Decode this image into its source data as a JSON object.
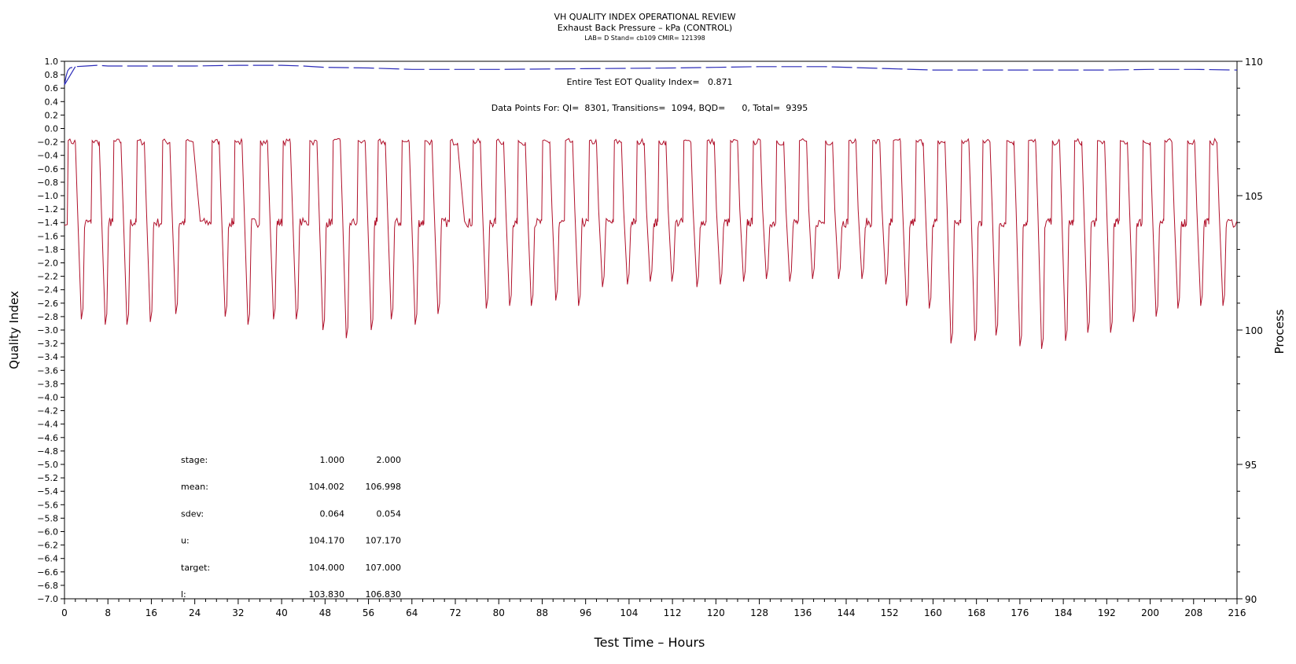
{
  "chart_data": {
    "type": "line",
    "title": "VH QUALITY INDEX OPERATIONAL REVIEW",
    "subtitle": "Exhaust Back Pressure – kPa (CONTROL)",
    "subtitle2": "LAB= D Stand= cb109 CMIR= 121398",
    "xlabel": "Test Time – Hours",
    "ylabel_left": "Quality Index",
    "ylabel_right": "Process",
    "xlim": [
      0,
      216
    ],
    "ylim_left": [
      -7.0,
      1.0
    ],
    "ylim_right": [
      90,
      110
    ],
    "x_ticks": [
      "0",
      "8",
      "16",
      "24",
      "32",
      "40",
      "48",
      "56",
      "64",
      "72",
      "80",
      "88",
      "96",
      "104",
      "112",
      "120",
      "128",
      "136",
      "144",
      "152",
      "160",
      "168",
      "176",
      "184",
      "192",
      "200",
      "208",
      "216"
    ],
    "y_left_ticks": [
      "1.0",
      "0.8",
      "0.6",
      "0.4",
      "0.2",
      "0.0",
      "-0.2",
      "-0.4",
      "-0.6",
      "-0.8",
      "-1.0",
      "-1.2",
      "-1.4",
      "-1.6",
      "-1.8",
      "-2.0",
      "-2.2",
      "-2.4",
      "-2.6",
      "-2.8",
      "-3.0",
      "-3.2",
      "-3.4",
      "-3.6",
      "-3.8",
      "-4.0",
      "-4.2",
      "-4.4",
      "-4.6",
      "-4.8",
      "-5.0",
      "-5.2",
      "-5.4",
      "-5.6",
      "-5.8",
      "-6.0",
      "-6.2",
      "-6.4",
      "-6.6",
      "-6.8",
      "-7.0"
    ],
    "y_right_ticks": [
      "90",
      "95",
      "100",
      "105",
      "110"
    ],
    "annotations": {
      "eot": "Entire Test EOT Quality Index=   0.871",
      "datapoints": "Data Points For: QI=  8301, Transitions=  1094, BQD=      0, Total=  9395"
    },
    "stats_table": {
      "rows": [
        {
          "label": "stage:",
          "v1": "1.000",
          "v2": "2.000"
        },
        {
          "label": "mean:",
          "v1": "104.002",
          "v2": "106.998"
        },
        {
          "label": "sdev:",
          "v1": "0.064",
          "v2": "0.054"
        },
        {
          "label": "u:",
          "v1": "104.170",
          "v2": "107.170"
        },
        {
          "label": "target:",
          "v1": "104.000",
          "v2": "107.000"
        },
        {
          "label": "l:",
          "v1": "103.830",
          "v2": "106.830"
        }
      ]
    },
    "series": [
      {
        "axis": "left",
        "color": "#2b2bb8",
        "style": "dashed",
        "x": [
          0.0,
          0.3,
          0.6,
          1.0,
          2.0,
          4.0,
          6.0,
          8.0,
          12.0,
          16.0,
          24.0,
          32.0,
          40.0,
          44.0,
          48.0,
          56.0,
          64.0,
          80.0,
          96.0,
          112.0,
          120.0,
          128.0,
          140.0,
          152.0,
          160.0,
          176.0,
          192.0,
          200.0,
          208.0,
          216.0
        ],
        "y": [
          0.65,
          0.78,
          0.86,
          0.9,
          0.92,
          0.93,
          0.94,
          0.93,
          0.93,
          0.93,
          0.93,
          0.94,
          0.94,
          0.93,
          0.91,
          0.9,
          0.88,
          0.88,
          0.89,
          0.9,
          0.91,
          0.92,
          0.92,
          0.89,
          0.87,
          0.87,
          0.87,
          0.88,
          0.88,
          0.87
        ]
      },
      {
        "axis": "right",
        "color": "#b0102a",
        "style": "solid",
        "cycle_start_hours": [
          0.5,
          4.9,
          8.9,
          13.2,
          17.9,
          22.2,
          27.0,
          31.2,
          35.9,
          40.1,
          45.0,
          49.3,
          53.9,
          57.6,
          62.0,
          66.2,
          70.9,
          75.1,
          79.4,
          83.4,
          87.9,
          92.1,
          96.5,
          101.1,
          105.3,
          109.3,
          113.9,
          118.2,
          122.5,
          126.7,
          131.0,
          135.2,
          140.0,
          144.3,
          148.7,
          152.5,
          156.7,
          160.7,
          165.1,
          169.0,
          173.4,
          177.4,
          181.8,
          185.9,
          190.1,
          194.3,
          198.5,
          202.5,
          206.7,
          210.8
        ],
        "trough_values": [
          100.4,
          100.2,
          100.2,
          100.3,
          100.6,
          null,
          100.5,
          100.2,
          100.4,
          100.4,
          100.0,
          99.7,
          100.0,
          100.4,
          100.2,
          100.6,
          null,
          100.8,
          100.9,
          100.9,
          101.1,
          100.9,
          101.6,
          101.7,
          101.8,
          101.8,
          101.6,
          101.7,
          101.8,
          101.9,
          101.8,
          101.9,
          101.9,
          101.9,
          101.7,
          100.9,
          100.8,
          99.5,
          99.6,
          99.8,
          99.4,
          99.3,
          99.6,
          99.9,
          99.9,
          100.3,
          100.5,
          100.8,
          100.9,
          100.9
        ],
        "stage1_value": 104.0,
        "stage2_value": 107.0
      }
    ]
  }
}
